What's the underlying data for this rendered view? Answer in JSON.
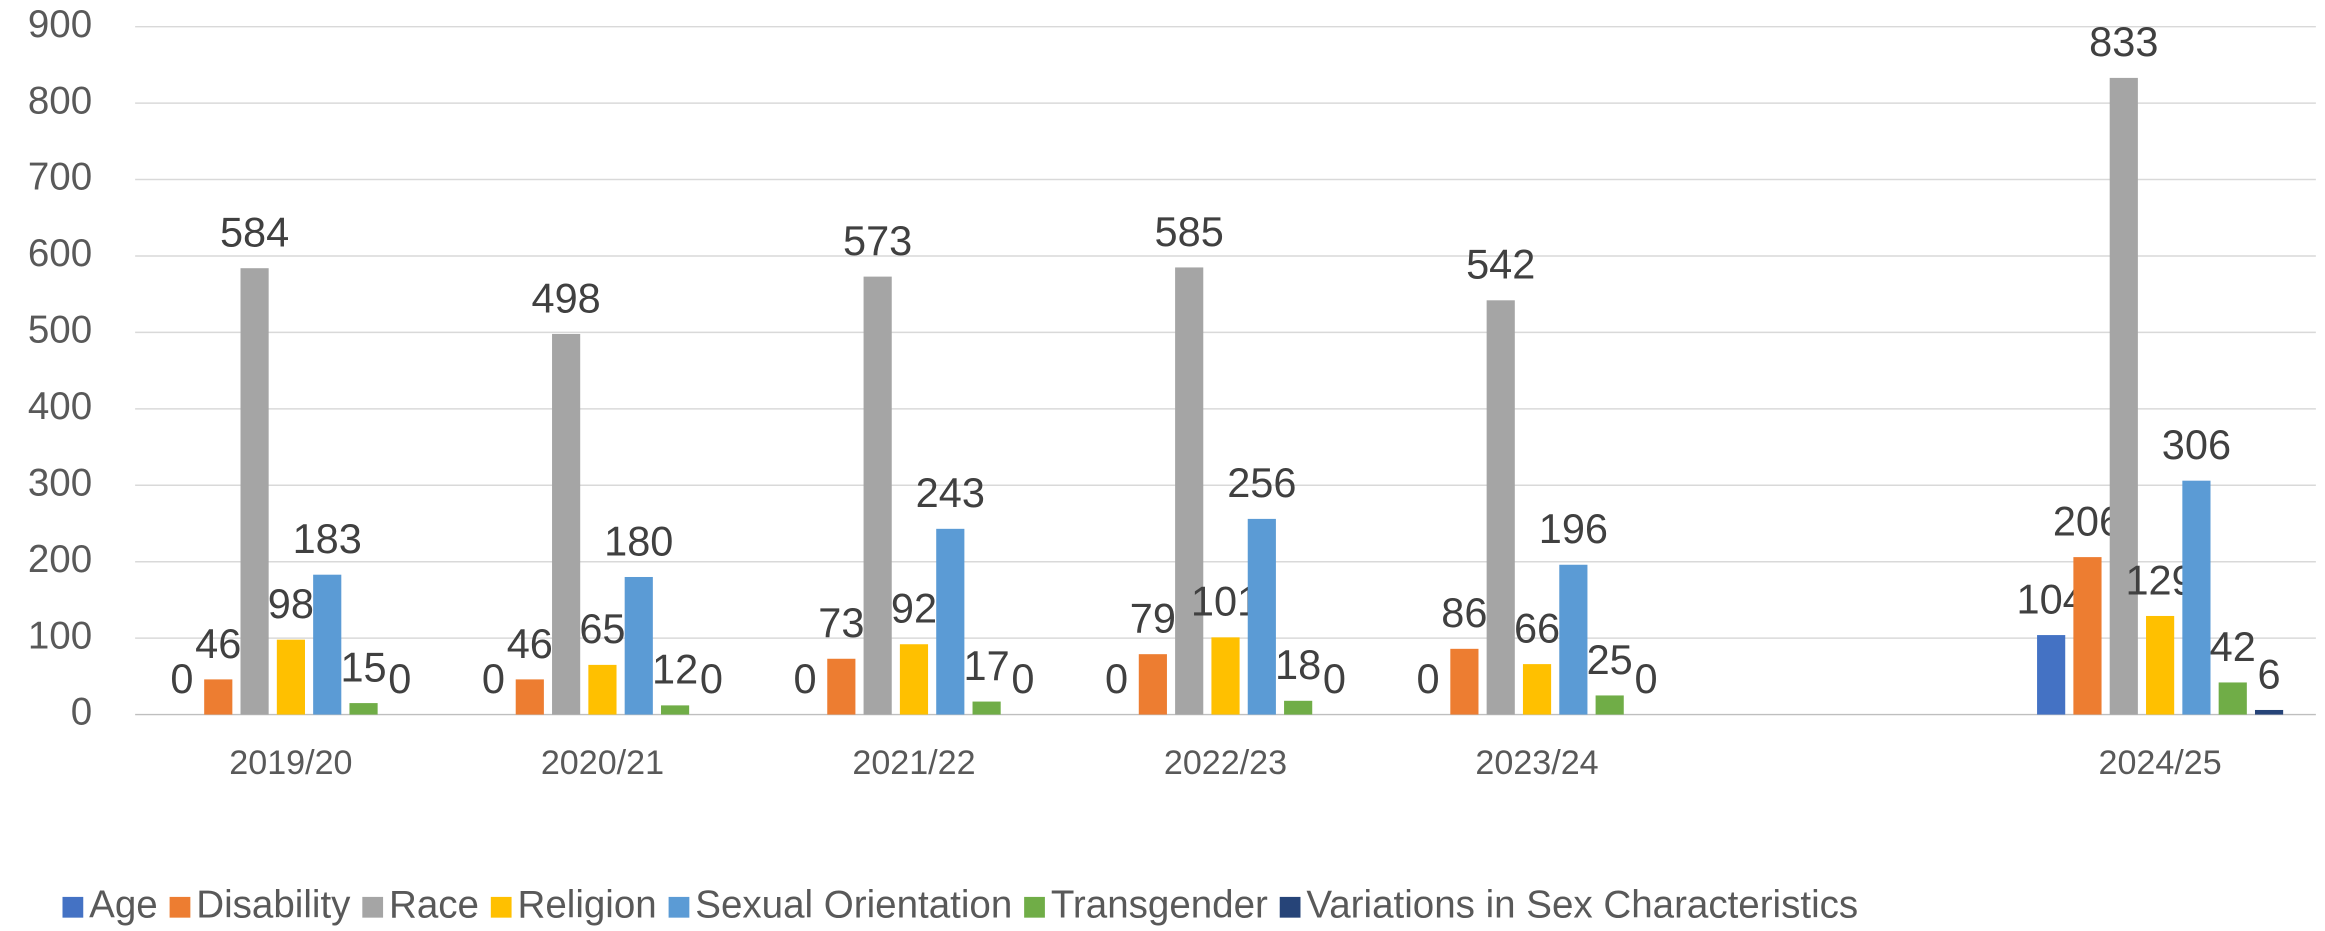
{
  "chart_data": {
    "type": "bar",
    "categories": [
      "2019/20",
      "2020/21",
      "2021/22",
      "2022/23",
      "2023/24",
      null,
      "2024/25"
    ],
    "series": [
      {
        "name": "Age",
        "color": "#4472c4",
        "values": [
          0,
          0,
          0,
          0,
          0,
          null,
          104
        ]
      },
      {
        "name": "Disability",
        "color": "#ed7d31",
        "values": [
          46,
          46,
          73,
          79,
          86,
          null,
          206
        ]
      },
      {
        "name": "Race",
        "color": "#a5a5a5",
        "values": [
          584,
          498,
          573,
          585,
          542,
          null,
          833
        ]
      },
      {
        "name": "Religion",
        "color": "#ffc000",
        "values": [
          98,
          65,
          92,
          101,
          66,
          null,
          129
        ]
      },
      {
        "name": "Sexual Orientation",
        "color": "#5b9bd5",
        "values": [
          183,
          180,
          243,
          256,
          196,
          null,
          306
        ]
      },
      {
        "name": "Transgender",
        "color": "#70ad47",
        "values": [
          15,
          12,
          17,
          18,
          25,
          null,
          42
        ]
      },
      {
        "name": "Variations in Sex Characteristics",
        "color": "#264478",
        "values": [
          0,
          0,
          0,
          0,
          0,
          null,
          6
        ]
      }
    ],
    "ylim": [
      0,
      900
    ],
    "yticks": [
      0,
      100,
      200,
      300,
      400,
      500,
      600,
      700,
      800,
      900
    ],
    "grid": true,
    "legend": "bottom"
  }
}
